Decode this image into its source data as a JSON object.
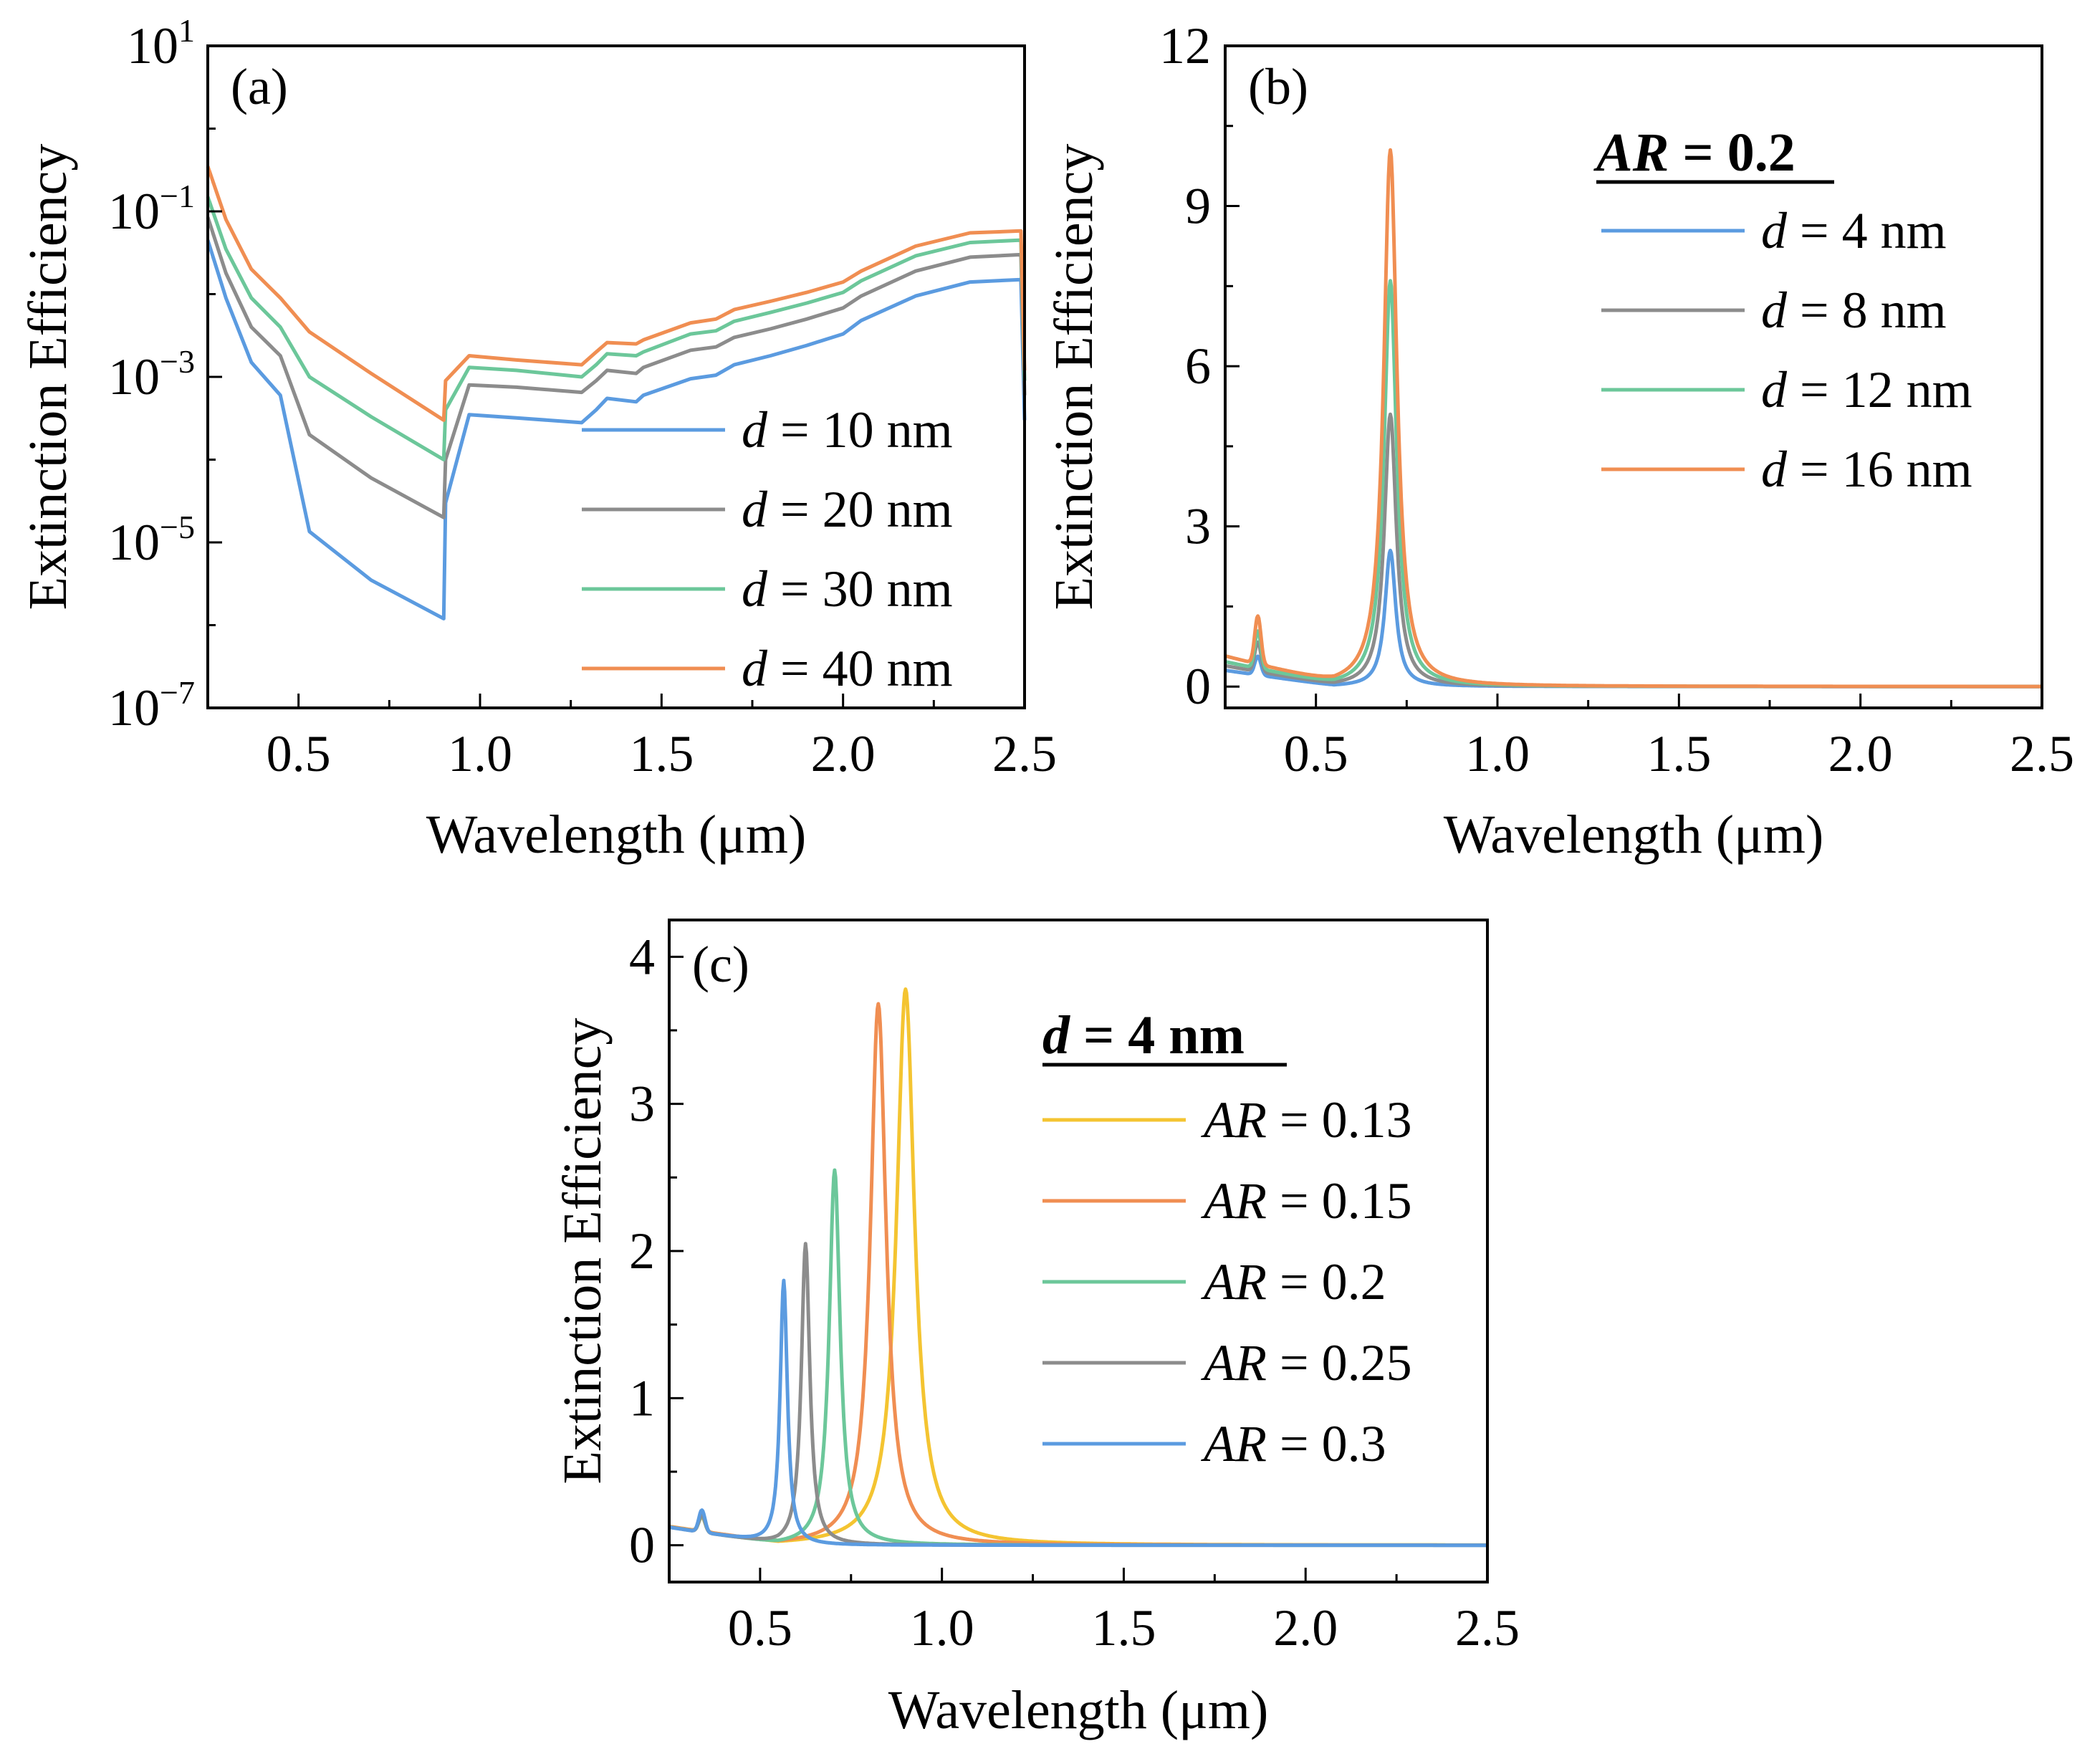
{
  "colors": {
    "blue": "#5B9BE0",
    "gray": "#8C8C8C",
    "green": "#6CC79A",
    "orange": "#F08E52",
    "yellow": "#F4C431"
  },
  "chart_data": [
    {
      "panel": "(a)",
      "type": "line",
      "xlabel": "Wavelength (μm)",
      "ylabel": "Extinction Efficiency",
      "yscale": "log",
      "xlim": [
        0.25,
        2.5
      ],
      "ylim_exponent": [
        -7,
        1
      ],
      "xticks": [
        "0.5",
        "1.0",
        "1.5",
        "2.0",
        "2.5"
      ],
      "yticks": [
        {
          "base": "10",
          "exp": "1"
        },
        {
          "base": "10",
          "exp": "−1"
        },
        {
          "base": "10",
          "exp": "−3"
        },
        {
          "base": "10",
          "exp": "−5"
        },
        {
          "base": "10",
          "exp": "−7"
        }
      ],
      "legend": {
        "title": "",
        "position": "lower-right"
      },
      "x": [
        0.25,
        0.3,
        0.37,
        0.45,
        0.53,
        0.7,
        0.9,
        0.905,
        0.97,
        1.1,
        1.28,
        1.32,
        1.35,
        1.43,
        1.45,
        1.58,
        1.65,
        1.7,
        1.8,
        1.9,
        2.0,
        2.05,
        2.2,
        2.35,
        2.49,
        2.5
      ],
      "series": [
        {
          "name_var": "d",
          "name_rest": " = 10 nm",
          "color": "#5B9BE0",
          "values": [
            0.045,
            0.009,
            0.0015,
            0.0006,
            1.35e-05,
            3.5e-06,
            1.2e-06,
            3e-05,
            0.00035,
            0.00032,
            0.00028,
            0.0004,
            0.00055,
            0.0005,
            0.0006,
            0.00095,
            0.00105,
            0.0014,
            0.0018,
            0.0024,
            0.0033,
            0.0048,
            0.0095,
            0.014,
            0.015,
            0.0003
          ]
        },
        {
          "name_var": "d",
          "name_rest": " = 20 nm",
          "color": "#8C8C8C",
          "values": [
            0.085,
            0.018,
            0.004,
            0.0018,
            0.0002,
            6e-05,
            2e-05,
            0.0001,
            0.0008,
            0.00075,
            0.00065,
            0.0009,
            0.0012,
            0.0011,
            0.0013,
            0.0021,
            0.0023,
            0.003,
            0.0038,
            0.005,
            0.0068,
            0.0095,
            0.019,
            0.028,
            0.03,
            0.0006
          ]
        },
        {
          "name_var": "d",
          "name_rest": " = 30 nm",
          "color": "#6CC79A",
          "values": [
            0.15,
            0.035,
            0.009,
            0.004,
            0.001,
            0.00033,
            0.0001,
            0.0004,
            0.0013,
            0.0012,
            0.001,
            0.0014,
            0.0019,
            0.0018,
            0.002,
            0.0033,
            0.0036,
            0.0047,
            0.006,
            0.0078,
            0.0105,
            0.0145,
            0.029,
            0.042,
            0.045,
            0.0009
          ]
        },
        {
          "name_var": "d",
          "name_rest": " = 40 nm",
          "color": "#F08E52",
          "values": [
            0.35,
            0.08,
            0.02,
            0.009,
            0.0035,
            0.0011,
            0.0003,
            0.0009,
            0.0018,
            0.0016,
            0.0014,
            0.002,
            0.0026,
            0.0025,
            0.0028,
            0.0045,
            0.005,
            0.0065,
            0.0082,
            0.0105,
            0.014,
            0.019,
            0.038,
            0.055,
            0.058,
            0.0012
          ]
        }
      ]
    },
    {
      "panel": "(b)",
      "type": "line",
      "xlabel": "Wavelength (μm)",
      "ylabel": "Extinction Efficiency",
      "xlim": [
        0.25,
        2.5
      ],
      "ylim": [
        -0.4,
        12
      ],
      "xticks": [
        "0.5",
        "1.0",
        "1.5",
        "2.0",
        "2.5"
      ],
      "yticks": [
        "0",
        "3",
        "6",
        "9",
        "12"
      ],
      "legend": {
        "title_var": "AR",
        "title_rest": " = 0.2",
        "position": "top-right"
      },
      "bump": {
        "x0": 0.34,
        "w": 0.012,
        "base_at_start": 0.25
      },
      "resonance_center": 0.705,
      "series": [
        {
          "name_var": "d",
          "name_rest": " = 4 nm",
          "color": "#5B9BE0",
          "peak": 2.55,
          "gamma": 0.018,
          "base": 0.3,
          "bump": 0.35
        },
        {
          "name_var": "d",
          "name_rest": " = 8 nm",
          "color": "#8C8C8C",
          "peak": 5.1,
          "gamma": 0.02,
          "base": 0.38,
          "bump": 0.55
        },
        {
          "name_var": "d",
          "name_rest": " = 12 nm",
          "color": "#6CC79A",
          "peak": 7.6,
          "gamma": 0.021,
          "base": 0.45,
          "bump": 0.7
        },
        {
          "name_var": "d",
          "name_rest": " = 16 nm",
          "color": "#F08E52",
          "peak": 10.05,
          "gamma": 0.022,
          "base": 0.55,
          "bump": 0.9
        }
      ]
    },
    {
      "panel": "(c)",
      "type": "line",
      "xlabel": "Wavelength (μm)",
      "ylabel": "Extinction Efficiency",
      "xlim": [
        0.25,
        2.5
      ],
      "ylim": [
        -0.25,
        4.25
      ],
      "xticks": [
        "0.5",
        "1.0",
        "1.5",
        "2.0",
        "2.5"
      ],
      "yticks": [
        "0",
        "1",
        "2",
        "3",
        "4"
      ],
      "legend": {
        "title_var": "d",
        "title_rest": " = 4 nm",
        "position": "top-right"
      },
      "bump": {
        "x0": 0.34,
        "w": 0.012,
        "base_at_start": 0.12
      },
      "series": [
        {
          "name_var": "AR",
          "name_rest": " = 0.13",
          "color": "#F4C431",
          "center": 0.9,
          "peak": 3.78,
          "gamma": 0.03,
          "bump": 0.1
        },
        {
          "name_var": "AR",
          "name_rest": " = 0.15",
          "color": "#F08E52",
          "center": 0.825,
          "peak": 3.68,
          "gamma": 0.026,
          "bump": 0.1
        },
        {
          "name_var": "AR",
          "name_rest": " = 0.2",
          "color": "#6CC79A",
          "center": 0.705,
          "peak": 2.55,
          "gamma": 0.018,
          "bump": 0.11
        },
        {
          "name_var": "AR",
          "name_rest": " = 0.25",
          "color": "#8C8C8C",
          "center": 0.625,
          "peak": 2.05,
          "gamma": 0.014,
          "bump": 0.12
        },
        {
          "name_var": "AR",
          "name_rest": " = 0.3",
          "color": "#5B9BE0",
          "center": 0.565,
          "peak": 1.8,
          "gamma": 0.012,
          "bump": 0.15
        }
      ]
    }
  ]
}
